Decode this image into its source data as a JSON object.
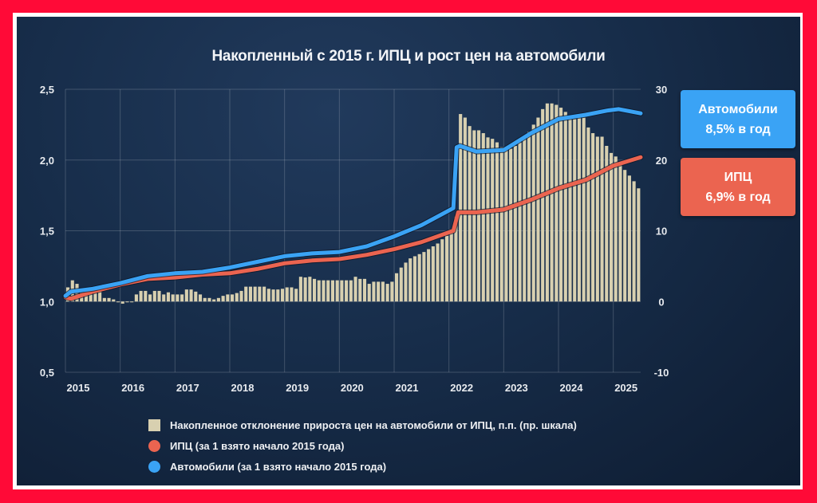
{
  "colors": {
    "cars": "#3aa3f5",
    "cpi": "#eb6450",
    "bars": "#d8d0b0",
    "frame": "#ff0a37"
  },
  "chart_data": {
    "type": "bar+line",
    "title": "Накопленный с 2015 г. ИПЦ и рост цен на автомобили",
    "left_axis": {
      "ylim": [
        0.5,
        2.5
      ],
      "ticks": [
        "0,5",
        "1,0",
        "1,5",
        "2,0",
        "2,5"
      ],
      "tick_values": [
        0.5,
        1.0,
        1.5,
        2.0,
        2.5
      ]
    },
    "right_axis": {
      "ylim": [
        -10,
        30
      ],
      "ticks": [
        "-10",
        "0",
        "10",
        "20",
        "30"
      ],
      "tick_values": [
        -10,
        0,
        10,
        20,
        30
      ]
    },
    "x_ticks": [
      "2015",
      "2016",
      "2017",
      "2018",
      "2019",
      "2020",
      "2021",
      "2022",
      "2023",
      "2024",
      "2025"
    ],
    "x_range": [
      2015,
      2025.5
    ],
    "grid": true,
    "bars": {
      "name": "Накопленное отклонение прироста цен на автомобили от ИПЦ, п.п. (пр. шкала)",
      "start": 2015,
      "frequency": "monthly",
      "values": [
        2,
        3,
        2.5,
        1.5,
        1.5,
        2,
        2,
        2,
        0.5,
        0.5,
        0.3,
        0,
        -0.3,
        0,
        0,
        1,
        1.5,
        1.5,
        1,
        1.5,
        1.5,
        1,
        1.3,
        1,
        1,
        1,
        1.7,
        1.7,
        1.4,
        1,
        0.5,
        0.5,
        0.3,
        0.5,
        0.8,
        1,
        1,
        1.2,
        1.5,
        2.1,
        2.1,
        2.1,
        2.1,
        2.1,
        1.8,
        1.7,
        1.7,
        1.8,
        2,
        2,
        1.8,
        3.5,
        3.4,
        3.5,
        3.2,
        3,
        3,
        3,
        3,
        3,
        3,
        3,
        3,
        3.5,
        3.2,
        3.2,
        2.5,
        2.8,
        2.8,
        2.8,
        2.5,
        2.8,
        4,
        4.8,
        5.5,
        6.1,
        6.4,
        6.7,
        7,
        7.4,
        7.8,
        8.2,
        8.8,
        9.3,
        10.2,
        12,
        26.5,
        26,
        24.8,
        24.2,
        24.2,
        23.8,
        23.2,
        23,
        22.5,
        21.8,
        21.5,
        21.6,
        22,
        22.5,
        23.2,
        24,
        25,
        26,
        27.2,
        28,
        28,
        27.8,
        27.4,
        26.8,
        26.2,
        25.8,
        26,
        26,
        24.6,
        23.8,
        23.3,
        23.3,
        22,
        21,
        20.5,
        19.5,
        18.6,
        17.8,
        17,
        16
      ]
    },
    "series": [
      {
        "name": "ИПЦ (за 1 взято начало 2015 года)",
        "color": "#eb6450",
        "x": [
          2015,
          2015.1,
          2015.5,
          2016,
          2016.5,
          2017,
          2017.5,
          2018,
          2018.5,
          2019,
          2019.5,
          2020,
          2020.5,
          2021,
          2021.5,
          2022.08,
          2022.17,
          2022.5,
          2023,
          2023.5,
          2024,
          2024.5,
          2025,
          2025.5
        ],
        "y": [
          1.03,
          1.02,
          1.07,
          1.12,
          1.16,
          1.17,
          1.19,
          1.2,
          1.23,
          1.27,
          1.29,
          1.3,
          1.33,
          1.37,
          1.42,
          1.5,
          1.63,
          1.63,
          1.65,
          1.72,
          1.8,
          1.86,
          1.96,
          2.02
        ]
      },
      {
        "name": "Автомобили (за 1 взято начало 2015 года)",
        "color": "#3aa3f5",
        "x": [
          2015,
          2015.1,
          2015.5,
          2016,
          2016.5,
          2017,
          2017.5,
          2018,
          2018.5,
          2019,
          2019.5,
          2020,
          2020.5,
          2021,
          2021.5,
          2022.08,
          2022.14,
          2022.2,
          2022.5,
          2023,
          2023.5,
          2024,
          2024.5,
          2024.9,
          2025.1,
          2025.5
        ],
        "y": [
          1.04,
          1.07,
          1.09,
          1.13,
          1.18,
          1.2,
          1.21,
          1.24,
          1.28,
          1.32,
          1.34,
          1.35,
          1.39,
          1.46,
          1.54,
          1.66,
          2.09,
          2.1,
          2.06,
          2.07,
          2.19,
          2.29,
          2.32,
          2.35,
          2.36,
          2.33
        ]
      }
    ]
  },
  "badges": {
    "cars": {
      "line1": "Автомобили",
      "line2": "8,5% в год"
    },
    "cpi": {
      "line1": "ИПЦ",
      "line2": "6,9% в год"
    }
  },
  "legend": {
    "bars": "Накопленное отклонение прироста цен на автомобили от ИПЦ, п.п. (пр. шкала)",
    "cpi": "ИПЦ (за 1 взято начало 2015 года)",
    "cars": "Автомобили (за 1 взято начало 2015 года)"
  }
}
